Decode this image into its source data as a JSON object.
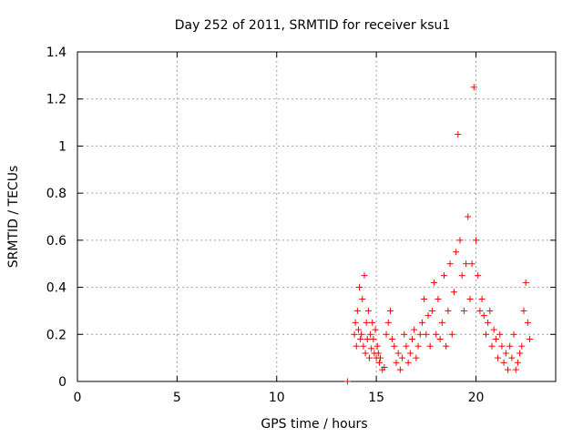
{
  "chart_data": {
    "type": "scatter",
    "title": "Day 252 of 2011, SRMTID for receiver ksu1",
    "xlabel": "GPS time / hours",
    "ylabel": "SRMTID / TECUs",
    "xlim": [
      0,
      24
    ],
    "ylim": [
      0,
      1.4
    ],
    "xticks": [
      0,
      5,
      10,
      15,
      20
    ],
    "xtick_labels": [
      "0",
      "5",
      "10",
      "15",
      "20"
    ],
    "yticks": [
      0,
      0.2,
      0.4,
      0.6,
      0.8,
      1.0,
      1.2,
      1.4
    ],
    "ytick_labels": [
      "0",
      "0.2",
      "0.4",
      "0.6",
      "0.8",
      "1",
      "1.2",
      "1.4"
    ],
    "grid": true,
    "marker": "+",
    "series": [
      {
        "name": "ksu1",
        "color": "#ff0000",
        "x": [
          13.55,
          13.9,
          13.95,
          14.0,
          14.05,
          14.1,
          14.15,
          14.2,
          14.25,
          14.3,
          14.35,
          14.4,
          14.45,
          14.5,
          14.55,
          14.6,
          14.65,
          14.7,
          14.75,
          14.8,
          14.85,
          14.9,
          14.95,
          15.0,
          15.05,
          15.1,
          15.15,
          15.2,
          15.3,
          15.4,
          15.5,
          15.6,
          15.7,
          15.8,
          15.9,
          16.0,
          16.1,
          16.2,
          16.3,
          16.4,
          16.5,
          16.6,
          16.7,
          16.8,
          16.9,
          17.0,
          17.1,
          17.2,
          17.3,
          17.4,
          17.5,
          17.6,
          17.7,
          17.8,
          17.9,
          18.0,
          18.1,
          18.2,
          18.3,
          18.4,
          18.5,
          18.6,
          18.7,
          18.8,
          18.9,
          19.0,
          19.1,
          19.2,
          19.3,
          19.4,
          19.5,
          19.6,
          19.7,
          19.8,
          19.9,
          20.0,
          20.1,
          20.2,
          20.3,
          20.4,
          20.5,
          20.6,
          20.7,
          20.8,
          20.9,
          21.0,
          21.1,
          21.2,
          21.3,
          21.4,
          21.5,
          21.6,
          21.7,
          21.8,
          21.9,
          22.0,
          22.1,
          22.2,
          22.3,
          22.4,
          22.5,
          22.6,
          22.7
        ],
        "y": [
          0.0,
          0.2,
          0.25,
          0.15,
          0.3,
          0.22,
          0.4,
          0.18,
          0.2,
          0.35,
          0.15,
          0.45,
          0.12,
          0.25,
          0.18,
          0.3,
          0.1,
          0.2,
          0.14,
          0.25,
          0.18,
          0.12,
          0.22,
          0.1,
          0.15,
          0.12,
          0.08,
          0.1,
          0.05,
          0.06,
          0.2,
          0.25,
          0.3,
          0.18,
          0.15,
          0.08,
          0.12,
          0.05,
          0.1,
          0.2,
          0.15,
          0.08,
          0.12,
          0.18,
          0.22,
          0.1,
          0.15,
          0.2,
          0.25,
          0.35,
          0.2,
          0.28,
          0.15,
          0.3,
          0.42,
          0.2,
          0.35,
          0.18,
          0.25,
          0.45,
          0.15,
          0.3,
          0.5,
          0.2,
          0.38,
          0.55,
          1.05,
          0.6,
          0.45,
          0.3,
          0.5,
          0.7,
          0.35,
          0.5,
          1.25,
          0.6,
          0.45,
          0.3,
          0.35,
          0.28,
          0.2,
          0.25,
          0.3,
          0.15,
          0.22,
          0.18,
          0.1,
          0.2,
          0.15,
          0.08,
          0.12,
          0.05,
          0.15,
          0.1,
          0.2,
          0.05,
          0.08,
          0.12,
          0.15,
          0.3,
          0.42,
          0.25,
          0.18
        ]
      }
    ]
  }
}
